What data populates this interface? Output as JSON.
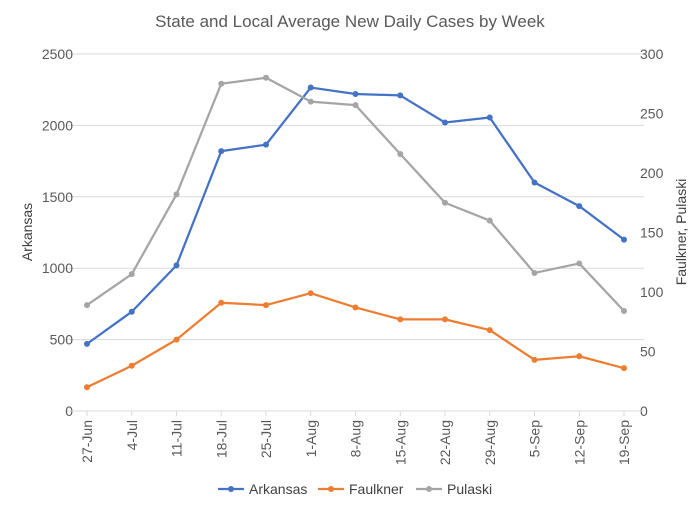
{
  "chart_data": {
    "type": "line",
    "title": "State and Local Average New Daily Cases by Week",
    "categories": [
      "27-Jun",
      "4-Jul",
      "11-Jul",
      "18-Jul",
      "25-Jul",
      "1-Aug",
      "8-Aug",
      "15-Aug",
      "22-Aug",
      "29-Aug",
      "5-Sep",
      "12-Sep",
      "19-Sep"
    ],
    "left_axis": {
      "label": "Arkansas",
      "ylim": [
        0,
        2500
      ],
      "ticks": [
        0,
        500,
        1000,
        1500,
        2000,
        2500
      ]
    },
    "right_axis": {
      "label": "Faulkner, Pulaski",
      "ylim": [
        0,
        300
      ],
      "ticks": [
        0,
        50,
        100,
        150,
        200,
        250,
        300
      ]
    },
    "grid": true,
    "legend_position": "bottom",
    "series": [
      {
        "name": "Arkansas",
        "axis": "left",
        "color": "#4472C4",
        "values": [
          470,
          695,
          1020,
          1820,
          1865,
          2265,
          2220,
          2210,
          2020,
          2055,
          1600,
          1435,
          1200
        ]
      },
      {
        "name": "Faulkner",
        "axis": "right",
        "color": "#ED7D31",
        "values": [
          20,
          38,
          60,
          91,
          89,
          99,
          87,
          77,
          77,
          68,
          43,
          46,
          36
        ]
      },
      {
        "name": "Pulaski",
        "axis": "right",
        "color": "#A5A5A5",
        "values": [
          89,
          115,
          182,
          275,
          280,
          260,
          257,
          216,
          175,
          160,
          116,
          124,
          84
        ]
      }
    ]
  }
}
